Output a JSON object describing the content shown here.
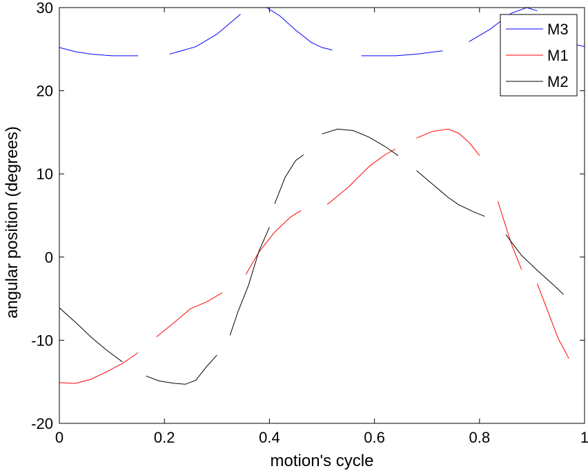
{
  "chart_data": {
    "type": "line",
    "xlabel": "motion's cycle",
    "ylabel": "angular position (degrees)",
    "xlim": [
      0,
      1
    ],
    "ylim": [
      -20,
      30
    ],
    "xticks": [
      "0",
      "0.2",
      "0.4",
      "0.6",
      "0.8",
      "1"
    ],
    "yticks": [
      "-20",
      "-10",
      "0",
      "10",
      "20",
      "30"
    ],
    "grid": false,
    "legend_position": "top-right",
    "series": [
      {
        "name": "M3",
        "color": "#0000ff",
        "segments": [
          [
            [
              0,
              25.2
            ],
            [
              0.03,
              24.7
            ],
            [
              0.06,
              24.4
            ],
            [
              0.1,
              24.2
            ],
            [
              0.15,
              24.2
            ]
          ],
          [
            [
              0.21,
              24.4
            ],
            [
              0.26,
              25.3
            ],
            [
              0.3,
              26.8
            ],
            [
              0.345,
              29.2
            ]
          ],
          [
            [
              0.395,
              30.0
            ],
            [
              0.42,
              29.0
            ],
            [
              0.45,
              27.3
            ],
            [
              0.48,
              25.8
            ],
            [
              0.5,
              25.2
            ],
            [
              0.52,
              24.9
            ]
          ],
          [
            [
              0.575,
              24.2
            ],
            [
              0.6,
              24.2
            ],
            [
              0.64,
              24.2
            ],
            [
              0.68,
              24.4
            ],
            [
              0.73,
              24.8
            ]
          ],
          [
            [
              0.78,
              25.9
            ],
            [
              0.82,
              27.4
            ],
            [
              0.86,
              29.3
            ],
            [
              0.89,
              30.0
            ],
            [
              0.91,
              29.6
            ]
          ],
          [
            [
              0.96,
              26.3
            ],
            [
              0.98,
              25.6
            ],
            [
              1.0,
              25.3
            ]
          ]
        ]
      },
      {
        "name": "M1",
        "color": "#ff0000",
        "segments": [
          [
            [
              0,
              -15.1
            ],
            [
              0.03,
              -15.2
            ],
            [
              0.06,
              -14.7
            ],
            [
              0.09,
              -13.8
            ],
            [
              0.12,
              -12.8
            ],
            [
              0.15,
              -11.5
            ]
          ],
          [
            [
              0.185,
              -9.6
            ],
            [
              0.22,
              -7.8
            ],
            [
              0.25,
              -6.2
            ],
            [
              0.28,
              -5.4
            ],
            [
              0.31,
              -4.3
            ]
          ],
          [
            [
              0.355,
              -2.1
            ],
            [
              0.38,
              0.6
            ],
            [
              0.41,
              3.0
            ],
            [
              0.44,
              4.8
            ],
            [
              0.46,
              5.6
            ]
          ],
          [
            [
              0.51,
              6.3
            ],
            [
              0.55,
              8.4
            ],
            [
              0.59,
              10.9
            ],
            [
              0.62,
              12.3
            ],
            [
              0.64,
              13.0
            ]
          ],
          [
            [
              0.68,
              14.3
            ],
            [
              0.71,
              15.1
            ],
            [
              0.74,
              15.4
            ],
            [
              0.76,
              14.9
            ],
            [
              0.78,
              13.8
            ],
            [
              0.8,
              12.2
            ]
          ],
          [
            [
              0.835,
              6.7
            ],
            [
              0.86,
              1.7
            ],
            [
              0.88,
              -1.5
            ]
          ],
          [
            [
              0.91,
              -3.2
            ],
            [
              0.93,
              -6.5
            ],
            [
              0.95,
              -9.8
            ],
            [
              0.97,
              -12.2
            ]
          ]
        ]
      },
      {
        "name": "M2",
        "color": "#000000",
        "segments": [
          [
            [
              0,
              -6.1
            ],
            [
              0.03,
              -7.8
            ],
            [
              0.06,
              -9.6
            ],
            [
              0.09,
              -11.2
            ],
            [
              0.12,
              -12.6
            ]
          ],
          [
            [
              0.165,
              -14.3
            ],
            [
              0.19,
              -14.9
            ],
            [
              0.22,
              -15.2
            ],
            [
              0.24,
              -15.3
            ],
            [
              0.26,
              -14.8
            ],
            [
              0.28,
              -13.2
            ],
            [
              0.3,
              -11.8
            ]
          ],
          [
            [
              0.325,
              -9.4
            ],
            [
              0.34,
              -6.6
            ],
            [
              0.36,
              -3.4
            ],
            [
              0.38,
              0.7
            ],
            [
              0.4,
              3.6
            ]
          ],
          [
            [
              0.41,
              6.4
            ],
            [
              0.43,
              9.6
            ],
            [
              0.45,
              11.6
            ],
            [
              0.465,
              12.3
            ]
          ],
          [
            [
              0.5,
              14.8
            ],
            [
              0.53,
              15.4
            ],
            [
              0.56,
              15.2
            ],
            [
              0.59,
              14.4
            ],
            [
              0.62,
              13.3
            ],
            [
              0.645,
              12.2
            ]
          ],
          [
            [
              0.68,
              10.4
            ],
            [
              0.71,
              8.8
            ],
            [
              0.74,
              7.2
            ],
            [
              0.76,
              6.3
            ],
            [
              0.79,
              5.4
            ],
            [
              0.81,
              4.9
            ]
          ],
          [
            [
              0.85,
              2.7
            ],
            [
              0.88,
              0.2
            ],
            [
              0.91,
              -1.6
            ],
            [
              0.94,
              -3.3
            ],
            [
              0.96,
              -4.5
            ]
          ]
        ]
      }
    ]
  }
}
